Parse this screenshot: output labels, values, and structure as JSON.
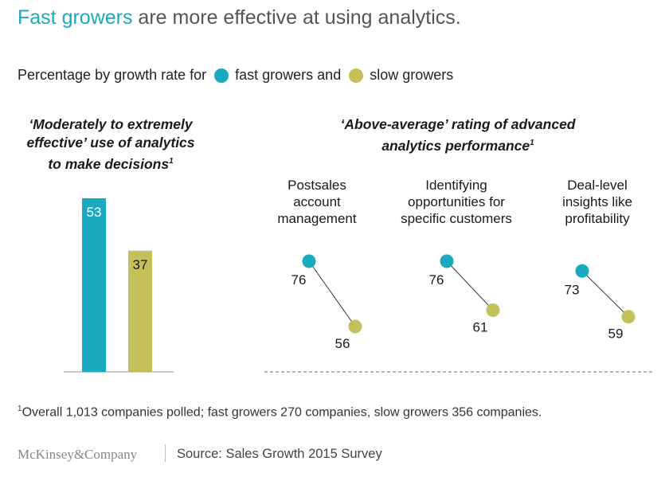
{
  "title": {
    "highlight": "Fast growers",
    "rest": " are more effective at using analytics."
  },
  "legend": {
    "prefix": "Percentage by growth rate for",
    "fast_label": "fast growers and",
    "slow_label": "slow growers"
  },
  "colors": {
    "fast": "#1aaabf",
    "slow": "#c4c05a",
    "title_gray": "#555555"
  },
  "left_subhead": {
    "line1": "‘Moderately to extremely",
    "line2": "effective’ use of analytics",
    "line3": "to make decisions",
    "footnote_mark": "1"
  },
  "right_subhead": {
    "line1": "‘Above-average’ rating of advanced",
    "line2": "analytics performance",
    "footnote_mark": "1"
  },
  "categories": [
    {
      "lines": [
        "Postsales",
        "account",
        "management"
      ]
    },
    {
      "lines": [
        "Identifying",
        "opportunities for",
        "specific customers"
      ]
    },
    {
      "lines": [
        "Deal-level",
        "insights like",
        "profitability"
      ]
    }
  ],
  "chart_data": [
    {
      "type": "bar",
      "title": "‘Moderately to extremely effective’ use of analytics to make decisions",
      "categories": [
        "Fast growers",
        "Slow growers"
      ],
      "values": [
        53,
        37
      ],
      "ylim": [
        0,
        53
      ]
    },
    {
      "type": "scatter",
      "title": "‘Above-average’ rating of advanced analytics performance",
      "categories": [
        "Postsales account management",
        "Identifying opportunities for specific customers",
        "Deal-level insights like profitability"
      ],
      "series": [
        {
          "name": "fast growers",
          "values": [
            76,
            76,
            73
          ]
        },
        {
          "name": "slow growers",
          "values": [
            56,
            61,
            59
          ]
        }
      ]
    }
  ],
  "footnote": {
    "mark": "1",
    "text": "Overall 1,013 companies polled; fast growers 270 companies, slow growers 356 companies."
  },
  "brand": "McKinsey&Company",
  "source": "Source: Sales Growth 2015 Survey"
}
